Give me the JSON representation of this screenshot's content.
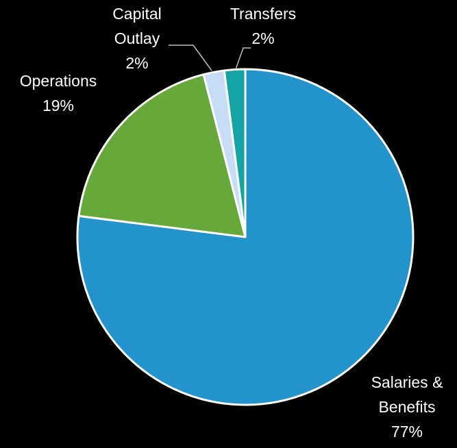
{
  "chart_data": {
    "type": "pie",
    "title": "",
    "start_angle_deg": 0,
    "direction": "clockwise",
    "slices": [
      {
        "label": [
          "Salaries &",
          "Benefits"
        ],
        "value_label": "77%",
        "value": 77,
        "color": "#2393CB"
      },
      {
        "label": [
          "Operations"
        ],
        "value_label": "19%",
        "value": 19,
        "color": "#67A83B"
      },
      {
        "label": [
          "Capital",
          "Outlay"
        ],
        "value_label": "2%",
        "value": 2,
        "color": "#C7DDF5"
      },
      {
        "label": [
          "Transfers"
        ],
        "value_label": "2%",
        "value": 2,
        "color": "#16A3A3"
      }
    ],
    "legend": "none",
    "data_labels": "outside-with-leaders"
  }
}
